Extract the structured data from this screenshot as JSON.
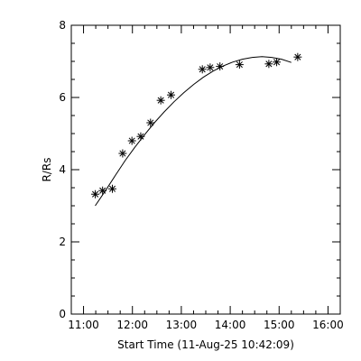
{
  "chart_data": {
    "type": "scatter",
    "xlabel": "Start Time (11-Aug-25 10:42:09)",
    "ylabel": "R/Rs",
    "xlim": [
      10.75,
      16.25
    ],
    "ylim": [
      0,
      8
    ],
    "grid": false,
    "x_ticks": [
      {
        "value": 11,
        "label": "11:00"
      },
      {
        "value": 12,
        "label": "12:00"
      },
      {
        "value": 13,
        "label": "13:00"
      },
      {
        "value": 14,
        "label": "14:00"
      },
      {
        "value": 15,
        "label": "15:00"
      },
      {
        "value": 16,
        "label": "16:00"
      }
    ],
    "y_ticks": [
      {
        "value": 0,
        "label": "0"
      },
      {
        "value": 2,
        "label": "2"
      },
      {
        "value": 4,
        "label": "4"
      },
      {
        "value": 6,
        "label": "6"
      },
      {
        "value": 8,
        "label": "8"
      }
    ],
    "series": [
      {
        "marker": "asterisk",
        "x": [
          11.24,
          11.39,
          11.59,
          11.8,
          11.99,
          12.17,
          12.37,
          12.58,
          12.79,
          13.43,
          13.59,
          13.79,
          14.19,
          14.79,
          14.95,
          15.38
        ],
        "y": [
          3.32,
          3.42,
          3.47,
          4.45,
          4.8,
          4.92,
          5.3,
          5.92,
          6.07,
          6.78,
          6.83,
          6.86,
          6.91,
          6.93,
          6.98,
          7.12
        ]
      },
      {
        "marker": "line",
        "x": [
          11.24,
          11.45,
          11.65,
          11.85,
          12.05,
          12.25,
          12.45,
          12.65,
          12.85,
          13.05,
          13.25,
          13.45,
          13.65,
          13.85,
          14.05,
          14.25,
          14.45,
          14.65,
          14.85,
          15.05,
          15.25
        ],
        "y": [
          3.0,
          3.42,
          3.84,
          4.25,
          4.62,
          4.97,
          5.3,
          5.6,
          5.88,
          6.13,
          6.36,
          6.56,
          6.73,
          6.87,
          6.98,
          7.06,
          7.11,
          7.13,
          7.11,
          7.06,
          6.97
        ]
      }
    ]
  }
}
